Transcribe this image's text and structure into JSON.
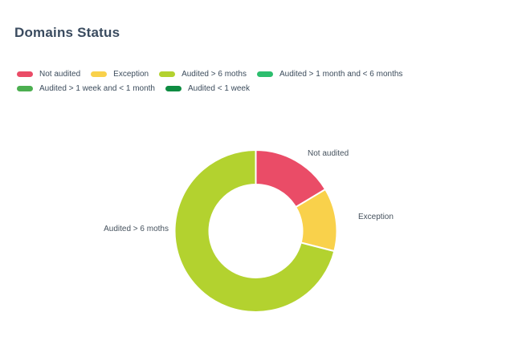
{
  "header": {
    "title": "Domains Status"
  },
  "colors": {
    "background": "#ffffff",
    "title_text": "#3a4b5f",
    "legend_text": "#3c4c5c",
    "slice_label_text": "#46525e"
  },
  "legend": {
    "rows": [
      [
        {
          "label": "Not audited",
          "color": "#ea4c67"
        },
        {
          "label": "Exception",
          "color": "#f9d14b"
        },
        {
          "label": "Audited > 6 moths",
          "color": "#b3d22f"
        },
        {
          "label": "Audited > 1 month and < 6 months",
          "color": "#2dbe6e"
        }
      ],
      [
        {
          "label": "Audited > 1 week and < 1 month",
          "color": "#4caf50"
        },
        {
          "label": "Audited < 1 week",
          "color": "#0e8c42"
        }
      ]
    ]
  },
  "chart_data": {
    "type": "pie",
    "subtype": "donut",
    "title": "Domains Status",
    "legend_position": "top-left, two rows",
    "start_angle_deg": 0,
    "clockwise": true,
    "categories": [
      "Not audited",
      "Exception",
      "Audited > 6 moths",
      "Audited > 1 month and < 6 months",
      "Audited > 1 week and < 1 month",
      "Audited < 1 week"
    ],
    "values": [
      16.4,
      12.6,
      71,
      0,
      0,
      0
    ],
    "value_unit": "percent of ring, estimated from arc angles (no numeric labels shown)",
    "colors": [
      "#ea4c67",
      "#f9d14b",
      "#b3d22f",
      "#2dbe6e",
      "#4caf50",
      "#0e8c42"
    ],
    "slice_gap_color": "#ffffff",
    "visible_slice_labels": [
      "Not audited",
      "Exception",
      "Audited > 6 moths"
    ]
  },
  "slice_labels": [
    {
      "text": "Not audited"
    },
    {
      "text": "Exception"
    },
    {
      "text": "Audited > 6 moths"
    }
  ]
}
